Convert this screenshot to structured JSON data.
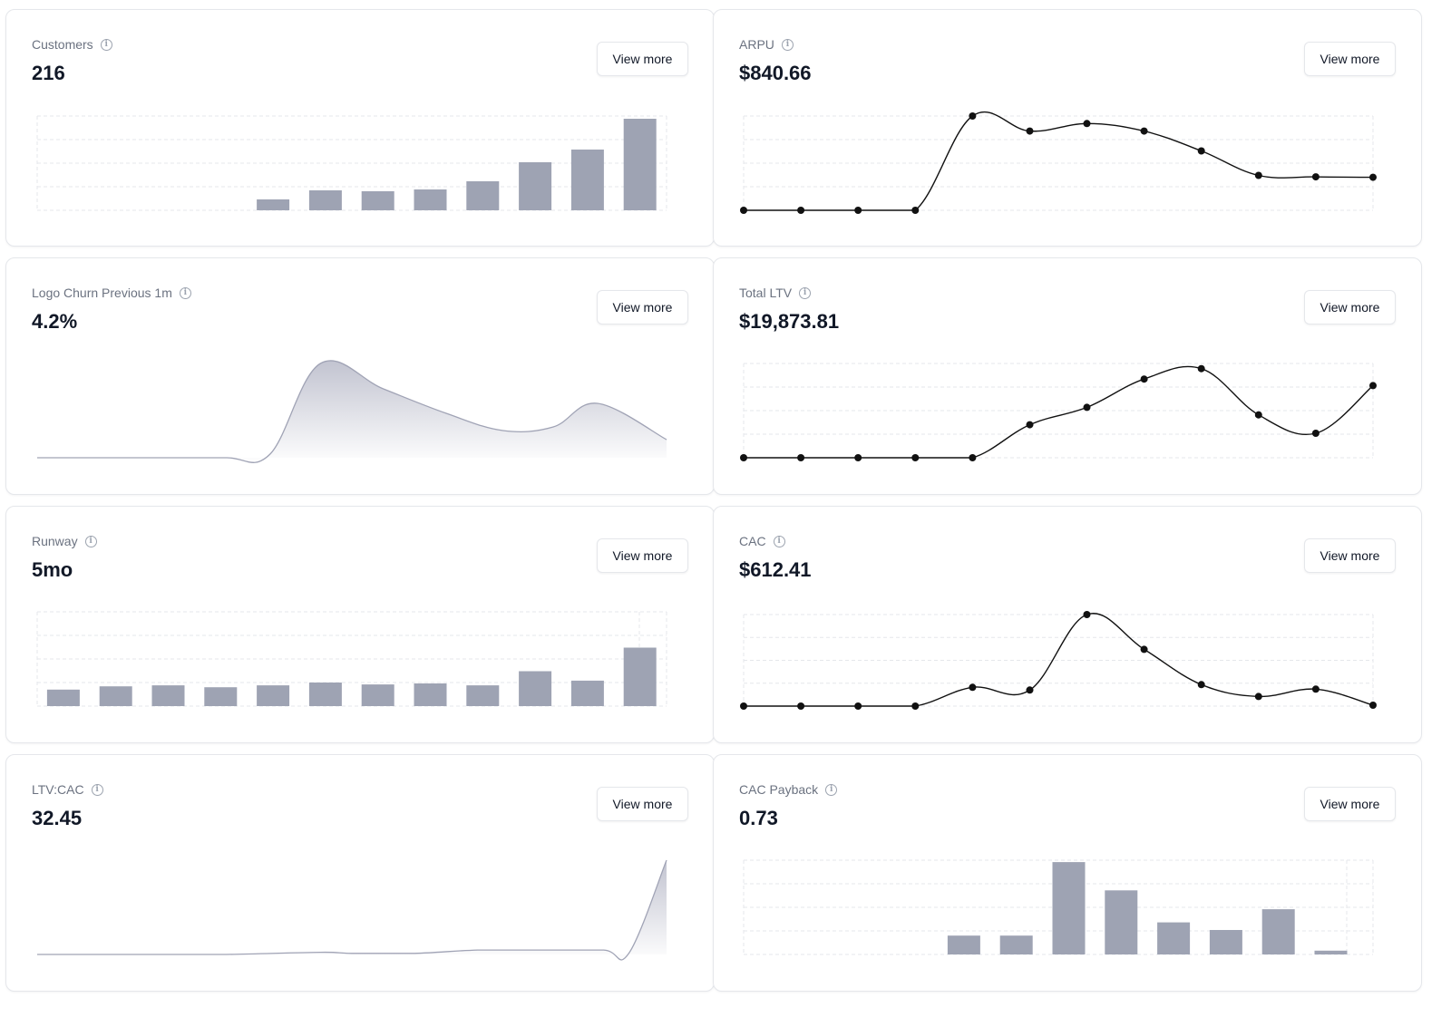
{
  "view_more_label": "View more",
  "colors": {
    "bar": "#9ea3b3",
    "line": "#111111",
    "area_stroke": "#a0a3b5",
    "area_fill": "#b7b9c8",
    "grid": "#e5e7eb"
  },
  "icons": {
    "info": "info-icon"
  },
  "cards": [
    {
      "id": "customers",
      "title": "Customers",
      "value": "216",
      "chart_data": {
        "type": "bar",
        "values": [
          0,
          0,
          0,
          0,
          12,
          22,
          21,
          23,
          32,
          53,
          67,
          101
        ],
        "ylim": [
          0,
          104
        ],
        "grid": true
      }
    },
    {
      "id": "arpu",
      "title": "ARPU",
      "value": "$840.66",
      "chart_data": {
        "type": "line",
        "values": [
          0,
          0,
          0,
          0,
          1000,
          840,
          920,
          840,
          630,
          370,
          355,
          350
        ],
        "ylim": [
          0,
          1000
        ],
        "grid": true,
        "markers": true
      }
    },
    {
      "id": "logo-churn",
      "title": "Logo Churn Previous 1m",
      "value": "4.2%",
      "chart_data": {
        "type": "area",
        "x": [
          0,
          1,
          2,
          3,
          3.7,
          4.5,
          5.5,
          6.5,
          7.4,
          8.2,
          8.9,
          10
        ],
        "values": [
          0,
          0,
          0,
          0,
          0.4,
          10.4,
          7.6,
          4.9,
          3.0,
          3.4,
          6.0,
          2.0
        ],
        "xlim": [
          0,
          10
        ],
        "ylim": [
          0,
          10.4
        ],
        "grid": false
      }
    },
    {
      "id": "total-ltv",
      "title": "Total LTV",
      "value": "$19,873.81",
      "chart_data": {
        "type": "line",
        "values": [
          0,
          0,
          0,
          0,
          0,
          7000,
          10700,
          16700,
          18900,
          9100,
          5200,
          15300
        ],
        "ylim": [
          0,
          20000
        ],
        "grid": true,
        "markers": true
      }
    },
    {
      "id": "runway",
      "title": "Runway",
      "value": "5mo",
      "chart_data": {
        "type": "bar",
        "values": [
          3.5,
          4.2,
          4.4,
          4.0,
          4.4,
          5.0,
          4.6,
          4.8,
          4.4,
          7.4,
          5.4,
          12.4
        ],
        "ylim": [
          0,
          20
        ],
        "grid": true
      }
    },
    {
      "id": "cac",
      "title": "CAC",
      "value": "$612.41",
      "chart_data": {
        "type": "line",
        "values": [
          0,
          0,
          0,
          0,
          205,
          175,
          1000,
          620,
          235,
          105,
          185,
          10
        ],
        "ylim": [
          0,
          1000
        ],
        "grid": true,
        "markers": true
      }
    },
    {
      "id": "ltv-cac",
      "title": "LTV:CAC",
      "value": "32.45",
      "chart_data": {
        "type": "area",
        "x": [
          0,
          1,
          2,
          3,
          4.5,
          5,
          6,
          7,
          8,
          9,
          9.4,
          10
        ],
        "values": [
          0,
          0,
          0,
          0,
          0.2,
          0.1,
          0.1,
          0.4,
          0.4,
          0.4,
          0.1,
          8.5
        ],
        "xlim": [
          0,
          10
        ],
        "ylim": [
          0,
          8.5
        ],
        "grid": false
      }
    },
    {
      "id": "cac-payback",
      "title": "CAC Payback",
      "value": "0.73",
      "chart_data": {
        "type": "bar",
        "values": [
          0,
          0,
          0,
          0,
          0,
          2,
          2,
          9.8,
          6.8,
          3.4,
          2.6,
          4.8,
          0.4
        ],
        "ylim": [
          0,
          10
        ],
        "grid": true
      }
    }
  ]
}
